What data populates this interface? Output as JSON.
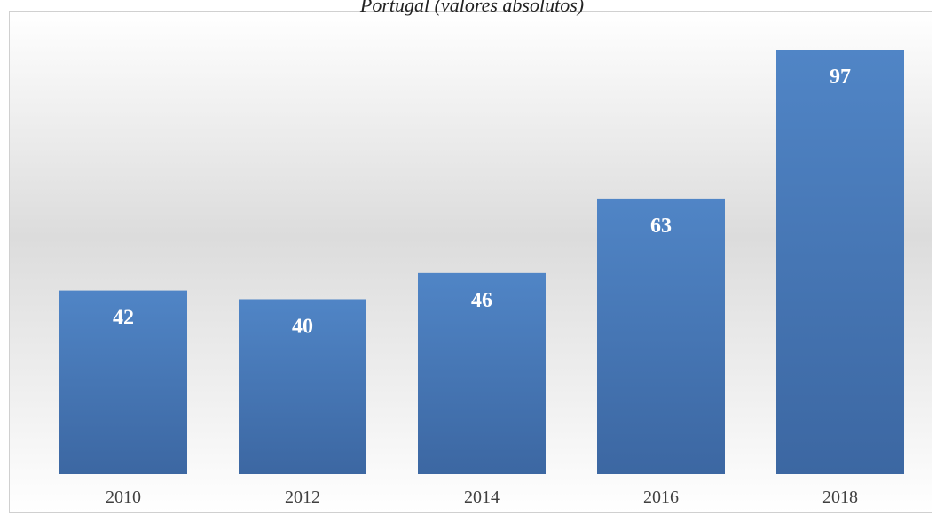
{
  "chart_data": {
    "type": "bar",
    "title": "Portugal (valores absolutos)",
    "categories": [
      "2010",
      "2012",
      "2014",
      "2016",
      "2018"
    ],
    "values": [
      42,
      40,
      46,
      63,
      97
    ],
    "color": "#4a7bbd"
  }
}
